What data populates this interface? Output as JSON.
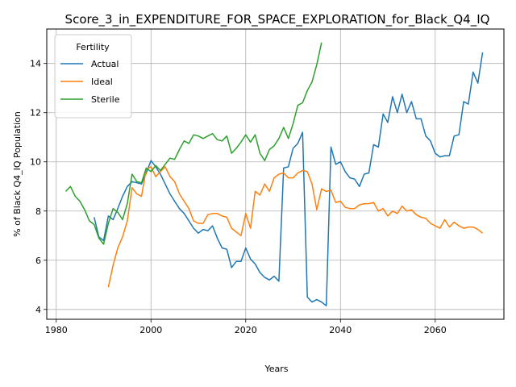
{
  "chart_data": {
    "type": "line",
    "title": "Score_3_in_EXPENDITURE_FOR_SPACE_EXPLORATION_for_Black_Q4_IQ",
    "xlabel": "Years",
    "ylabel": "% of Black Q4_IQ Population",
    "xlim": [
      1978,
      2074.5
    ],
    "ylim": [
      3.6,
      15.4
    ],
    "xticks": [
      1980,
      2000,
      2020,
      2040,
      2060
    ],
    "yticks": [
      4,
      6,
      8,
      10,
      12,
      14
    ],
    "grid": true,
    "legend": {
      "title": "Fertility",
      "placement": "top-left"
    },
    "series": [
      {
        "name": "Actual",
        "color": "#1f77b4",
        "x": [
          1988,
          1989,
          1990,
          1991,
          1992,
          1993,
          1994,
          1995,
          1996,
          1997,
          1998,
          1999,
          2000,
          2001,
          2002,
          2003,
          2004,
          2005,
          2006,
          2007,
          2008,
          2009,
          2010,
          2011,
          2012,
          2013,
          2014,
          2015,
          2016,
          2017,
          2018,
          2019,
          2020,
          2021,
          2022,
          2023,
          2024,
          2025,
          2026,
          2027,
          2028,
          2029,
          2030,
          2031,
          2032,
          2033,
          2034,
          2035,
          2036,
          2037,
          2038,
          2039,
          2040,
          2041,
          2042,
          2043,
          2044,
          2045,
          2046,
          2047,
          2048,
          2049,
          2050,
          2051,
          2052,
          2053,
          2054,
          2055,
          2056,
          2057,
          2058,
          2059,
          2060,
          2061,
          2062,
          2063,
          2064,
          2065,
          2066,
          2067,
          2068,
          2069,
          2070
        ],
        "values": [
          7.75,
          6.95,
          6.8,
          7.8,
          7.65,
          8.1,
          8.6,
          9.0,
          9.2,
          9.15,
          9.1,
          9.55,
          10.05,
          9.8,
          9.5,
          9.1,
          8.7,
          8.4,
          8.1,
          7.9,
          7.6,
          7.3,
          7.1,
          7.25,
          7.2,
          7.4,
          6.9,
          6.5,
          6.45,
          5.7,
          5.95,
          5.95,
          6.5,
          6.05,
          5.85,
          5.5,
          5.3,
          5.2,
          5.35,
          5.15,
          9.75,
          9.8,
          10.55,
          10.75,
          11.2,
          4.5,
          4.3,
          4.4,
          4.3,
          4.15,
          10.6,
          9.9,
          10.0,
          9.6,
          9.35,
          9.3,
          9.0,
          9.5,
          9.55,
          10.7,
          10.6,
          11.95,
          11.6,
          12.65,
          12.0,
          12.75,
          12.0,
          12.45,
          11.75,
          11.75,
          11.05,
          10.85,
          10.35,
          10.2,
          10.25,
          10.25,
          11.05,
          11.1,
          12.45,
          12.35,
          13.65,
          13.2,
          14.45
        ]
      },
      {
        "name": "Ideal",
        "color": "#ff7f0e",
        "x": [
          1991,
          1992,
          1993,
          1994,
          1995,
          1996,
          1997,
          1998,
          1999,
          2000,
          2001,
          2002,
          2003,
          2004,
          2005,
          2006,
          2007,
          2008,
          2009,
          2010,
          2011,
          2012,
          2013,
          2014,
          2015,
          2016,
          2017,
          2018,
          2019,
          2020,
          2021,
          2022,
          2023,
          2024,
          2025,
          2026,
          2027,
          2028,
          2029,
          2030,
          2031,
          2032,
          2033,
          2034,
          2035,
          2036,
          2037,
          2038,
          2039,
          2040,
          2041,
          2042,
          2043,
          2044,
          2045,
          2046,
          2047,
          2048,
          2049,
          2050,
          2051,
          2052,
          2053,
          2054,
          2055,
          2056,
          2057,
          2058,
          2059,
          2060,
          2061,
          2062,
          2063,
          2064,
          2065,
          2066,
          2067,
          2068,
          2069,
          2070
        ],
        "values": [
          4.9,
          5.8,
          6.5,
          6.95,
          7.6,
          8.95,
          8.7,
          8.6,
          9.7,
          9.8,
          9.4,
          9.6,
          9.8,
          9.4,
          9.2,
          8.7,
          8.4,
          8.1,
          7.6,
          7.5,
          7.5,
          7.85,
          7.9,
          7.9,
          7.8,
          7.75,
          7.3,
          7.15,
          7.0,
          7.9,
          7.3,
          8.8,
          8.65,
          9.1,
          8.8,
          9.35,
          9.5,
          9.55,
          9.35,
          9.35,
          9.55,
          9.65,
          9.6,
          9.1,
          8.05,
          8.9,
          8.8,
          8.85,
          8.35,
          8.4,
          8.15,
          8.1,
          8.1,
          8.25,
          8.3,
          8.3,
          8.35,
          8.0,
          8.1,
          7.8,
          8.0,
          7.9,
          8.2,
          8.0,
          8.05,
          7.85,
          7.75,
          7.7,
          7.5,
          7.4,
          7.3,
          7.65,
          7.35,
          7.55,
          7.4,
          7.3,
          7.35,
          7.35,
          7.25,
          7.1
        ]
      },
      {
        "name": "Sterile",
        "color": "#2ca02c",
        "x": [
          1982,
          1983,
          1984,
          1985,
          1986,
          1987,
          1988,
          1989,
          1990,
          1991,
          1992,
          1993,
          1994,
          1995,
          1996,
          1997,
          1998,
          1999,
          2000,
          2001,
          2002,
          2003,
          2004,
          2005,
          2006,
          2007,
          2008,
          2009,
          2010,
          2011,
          2012,
          2013,
          2014,
          2015,
          2016,
          2017,
          2018,
          2019,
          2020,
          2021,
          2022,
          2023,
          2024,
          2025,
          2026,
          2027,
          2028,
          2029,
          2030,
          2031,
          2032,
          2033,
          2034,
          2035,
          2036
        ],
        "values": [
          8.8,
          9.0,
          8.6,
          8.4,
          8.05,
          7.6,
          7.45,
          6.9,
          6.65,
          7.5,
          8.1,
          7.95,
          7.65,
          8.3,
          9.5,
          9.2,
          9.15,
          9.75,
          9.6,
          9.85,
          9.65,
          9.9,
          10.15,
          10.1,
          10.5,
          10.85,
          10.75,
          11.1,
          11.05,
          10.95,
          11.05,
          11.15,
          10.9,
          10.85,
          11.05,
          10.35,
          10.55,
          10.8,
          11.1,
          10.8,
          11.1,
          10.35,
          10.05,
          10.5,
          10.65,
          10.95,
          11.4,
          10.95,
          11.55,
          12.3,
          12.4,
          12.9,
          13.25,
          13.95,
          14.85
        ]
      }
    ]
  }
}
